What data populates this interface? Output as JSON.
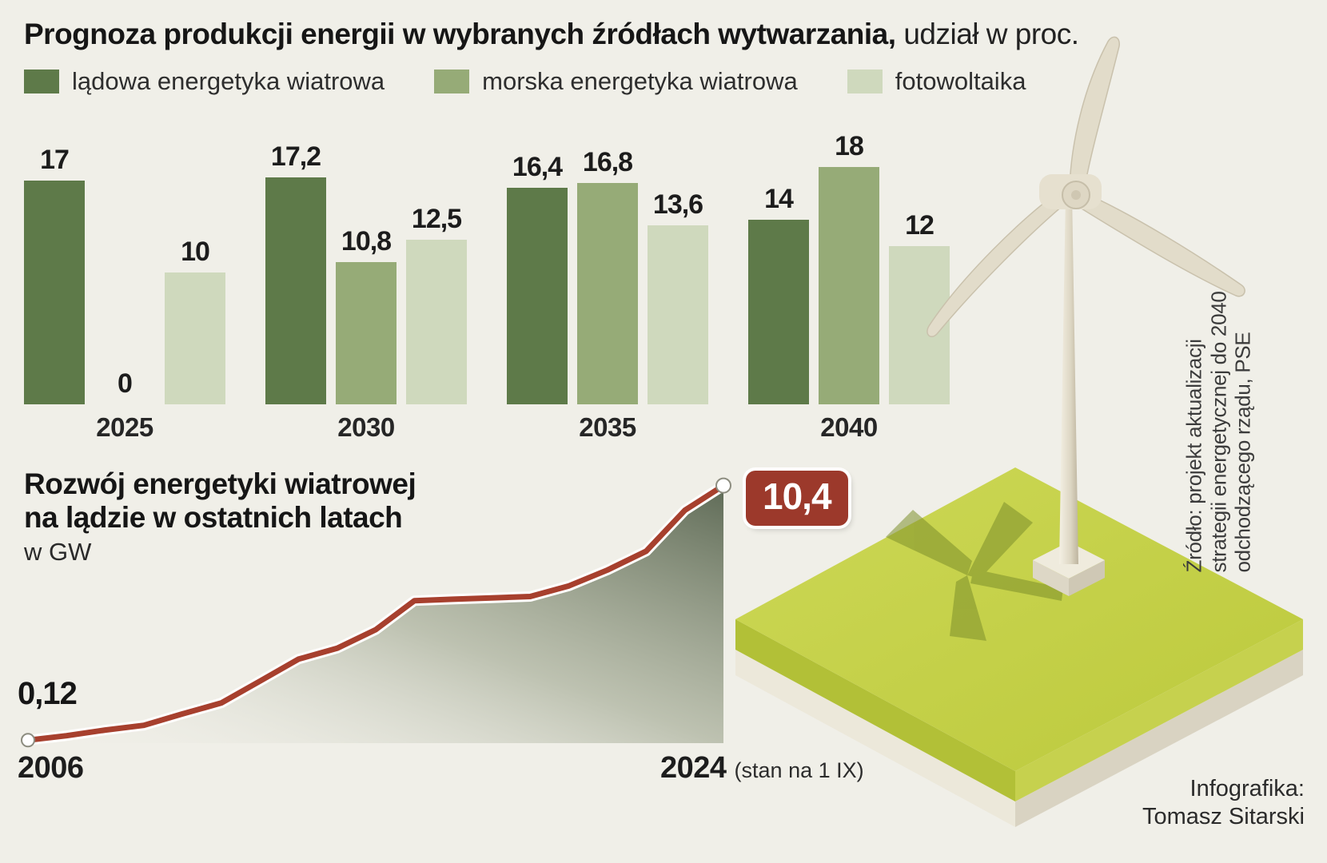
{
  "colors": {
    "background": "#f0efe8",
    "bar_dark_green": "#5e7a49",
    "bar_medium_green": "#96ab77",
    "bar_light_green": "#cfd9bd",
    "line_red": "#a7402e",
    "badge_bg": "#9c392b",
    "platform_lime": "#c4d044",
    "turbine_cream": "#e4decd"
  },
  "header": {
    "title_bold": "Prognoza produkcji energii w wybranych źródłach wytwarzania,",
    "title_regular": " udział w proc."
  },
  "legend": {
    "items": [
      {
        "label": "lądowa energetyka wiatrowa",
        "color": "#5e7a49"
      },
      {
        "label": "morska energetyka wiatrowa",
        "color": "#96ab77"
      },
      {
        "label": "fotowoltaika",
        "color": "#cfd9bd"
      }
    ]
  },
  "chart_data": [
    {
      "type": "bar",
      "title": "Prognoza produkcji energii w wybranych źródłach wytwarzania, udział w proc.",
      "categories": [
        "2025",
        "2030",
        "2035",
        "2040"
      ],
      "series": [
        {
          "name": "lądowa energetyka wiatrowa",
          "color": "#5e7a49",
          "values": [
            17,
            17.2,
            16.4,
            14
          ],
          "labels": [
            "17",
            "17,2",
            "16,4",
            "14"
          ]
        },
        {
          "name": "morska energetyka wiatrowa",
          "color": "#96ab77",
          "values": [
            0,
            10.8,
            16.8,
            18
          ],
          "labels": [
            "0",
            "10,8",
            "16,8",
            "18"
          ]
        },
        {
          "name": "fotowoltaika",
          "color": "#cfd9bd",
          "values": [
            10,
            12.5,
            13.6,
            12
          ],
          "labels": [
            "10",
            "12,5",
            "13,6",
            "12"
          ]
        }
      ],
      "ylim": [
        0,
        18
      ],
      "value_labels_shown": true,
      "grid": false,
      "legend_position": "top"
    },
    {
      "type": "area",
      "title": "Rozwój energetyki wiatrowej na lądzie w ostatnich latach",
      "title_line1": "Rozwój energetyki wiatrowej",
      "title_line2": "na lądzie w ostatnich latach",
      "unit": "w GW",
      "x": [
        2006,
        2007,
        2008,
        2009,
        2010,
        2011,
        2012,
        2013,
        2014,
        2015,
        2016,
        2017,
        2018,
        2019,
        2020,
        2021,
        2022,
        2023,
        2024
      ],
      "values": [
        0.12,
        0.3,
        0.53,
        0.72,
        1.18,
        1.62,
        2.5,
        3.39,
        3.83,
        4.58,
        5.75,
        5.81,
        5.86,
        5.92,
        6.35,
        6.99,
        7.75,
        9.4,
        10.4
      ],
      "start_label": "0,12",
      "end_label": "10,4",
      "x_axis_labels": [
        "2006",
        "2024"
      ],
      "x_axis_note": "(stan na 1 IX)",
      "line_color": "#a7402e",
      "grid": false
    }
  ],
  "source": {
    "lines": [
      "Źródło: projekt aktualizacji",
      "strategii energetycznej do 2040",
      "odchodzącego rządu, PSE"
    ]
  },
  "credit": {
    "label": "Infografika:",
    "author": "Tomasz Sitarski"
  }
}
